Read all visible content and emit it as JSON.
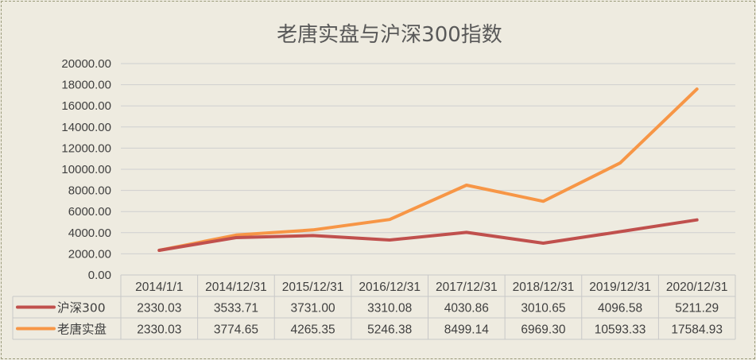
{
  "chart_data": {
    "type": "line",
    "title": "老唐实盘与沪深300指数",
    "categories": [
      "2014/1/1",
      "2014/12/31",
      "2015/12/31",
      "2016/12/31",
      "2017/12/31",
      "2018/12/31",
      "2019/12/31",
      "2020/12/31"
    ],
    "series": [
      {
        "name": "沪深300",
        "color": "#c0504d",
        "values": [
          2330.03,
          3533.71,
          3731.0,
          3310.08,
          4030.86,
          3010.65,
          4096.58,
          5211.29
        ],
        "labels": [
          "2330.03",
          "3533.71",
          "3731.00",
          "3310.08",
          "4030.86",
          "3010.65",
          "4096.58",
          "5211.29"
        ]
      },
      {
        "name": "老唐实盘",
        "color": "#f79646",
        "values": [
          2330.03,
          3774.65,
          4265.35,
          5246.38,
          8499.14,
          6969.3,
          10593.33,
          17584.93
        ],
        "labels": [
          "2330.03",
          "3774.65",
          "4265.35",
          "5246.38",
          "8499.14",
          "6969.30",
          "10593.33",
          "17584.93"
        ]
      }
    ],
    "ylim": [
      0,
      20000
    ],
    "yticks": [
      "0.00",
      "2000.00",
      "4000.00",
      "6000.00",
      "8000.00",
      "10000.00",
      "12000.00",
      "14000.00",
      "16000.00",
      "18000.00",
      "20000.00"
    ],
    "grid": true,
    "legend": "data-table"
  }
}
